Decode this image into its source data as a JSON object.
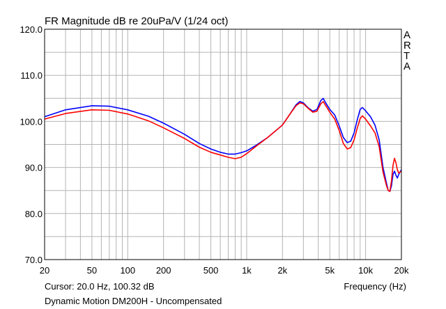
{
  "chart_data": {
    "type": "line",
    "title": "FR Magnitude dB re 20uPa/V (1/24 oct)",
    "xlabel": "Frequency (Hz)",
    "ylabel": "",
    "x_scale": "log",
    "xlim": [
      20,
      20000
    ],
    "ylim": [
      70,
      120
    ],
    "grid": true,
    "y_ticks": [
      "120.0",
      "110.0",
      "100.0",
      "90.0",
      "80.0",
      "70.0"
    ],
    "x_ticks": [
      {
        "value": 20,
        "label": "20"
      },
      {
        "value": 50,
        "label": "50"
      },
      {
        "value": 100,
        "label": "100"
      },
      {
        "value": 200,
        "label": "200"
      },
      {
        "value": 500,
        "label": "500"
      },
      {
        "value": 1000,
        "label": "1k"
      },
      {
        "value": 2000,
        "label": "2k"
      },
      {
        "value": 5000,
        "label": "5k"
      },
      {
        "value": 10000,
        "label": "10k"
      },
      {
        "value": 20000,
        "label": "20k"
      }
    ],
    "series": [
      {
        "color": "#0000ff",
        "points": [
          [
            20,
            101
          ],
          [
            30,
            102.5
          ],
          [
            50,
            103.4
          ],
          [
            70,
            103.3
          ],
          [
            100,
            102.5
          ],
          [
            150,
            101.1
          ],
          [
            200,
            99.6
          ],
          [
            300,
            97.2
          ],
          [
            400,
            95.2
          ],
          [
            500,
            94
          ],
          [
            600,
            93.3
          ],
          [
            700,
            92.9
          ],
          [
            800,
            92.9
          ],
          [
            900,
            93.2
          ],
          [
            1000,
            93.6
          ],
          [
            1200,
            94.8
          ],
          [
            1500,
            96.5
          ],
          [
            2000,
            99.2
          ],
          [
            2300,
            101.5
          ],
          [
            2600,
            103.6
          ],
          [
            2800,
            104.3
          ],
          [
            3000,
            104
          ],
          [
            3300,
            102.9
          ],
          [
            3600,
            102.2
          ],
          [
            3900,
            102.6
          ],
          [
            4200,
            104.5
          ],
          [
            4400,
            105
          ],
          [
            4600,
            104.1
          ],
          [
            5000,
            102.6
          ],
          [
            5500,
            101.4
          ],
          [
            6000,
            99
          ],
          [
            6500,
            96.5
          ],
          [
            7000,
            95.4
          ],
          [
            7500,
            95.7
          ],
          [
            8000,
            97.5
          ],
          [
            8500,
            100.3
          ],
          [
            9000,
            102.6
          ],
          [
            9400,
            103
          ],
          [
            10000,
            102.3
          ],
          [
            11000,
            101
          ],
          [
            12000,
            99.2
          ],
          [
            13000,
            96
          ],
          [
            14000,
            90
          ],
          [
            15000,
            86.5
          ],
          [
            15500,
            85
          ],
          [
            16000,
            84.8
          ],
          [
            16500,
            86
          ],
          [
            17000,
            88.5
          ],
          [
            17500,
            89.2
          ],
          [
            18000,
            88.3
          ],
          [
            18500,
            87.7
          ],
          [
            19000,
            88.5
          ],
          [
            20000,
            89.5
          ]
        ]
      },
      {
        "color": "#ff0000",
        "points": [
          [
            20,
            100.5
          ],
          [
            30,
            101.7
          ],
          [
            50,
            102.5
          ],
          [
            70,
            102.4
          ],
          [
            100,
            101.6
          ],
          [
            150,
            100.1
          ],
          [
            200,
            98.6
          ],
          [
            300,
            96.3
          ],
          [
            400,
            94.4
          ],
          [
            500,
            93.3
          ],
          [
            600,
            92.7
          ],
          [
            700,
            92.2
          ],
          [
            800,
            91.9
          ],
          [
            900,
            92.2
          ],
          [
            1000,
            93
          ],
          [
            1200,
            94.6
          ],
          [
            1500,
            96.5
          ],
          [
            2000,
            99.2
          ],
          [
            2300,
            101.5
          ],
          [
            2600,
            103.4
          ],
          [
            2800,
            104
          ],
          [
            3000,
            103.8
          ],
          [
            3300,
            102.8
          ],
          [
            3600,
            102
          ],
          [
            3900,
            102.2
          ],
          [
            4200,
            103.8
          ],
          [
            4400,
            104.3
          ],
          [
            4600,
            103.5
          ],
          [
            5000,
            102
          ],
          [
            5500,
            100.5
          ],
          [
            6000,
            98
          ],
          [
            6500,
            95.2
          ],
          [
            7000,
            94
          ],
          [
            7500,
            94.3
          ],
          [
            8000,
            96
          ],
          [
            8500,
            98.5
          ],
          [
            9000,
            100.6
          ],
          [
            9400,
            101.2
          ],
          [
            10000,
            100.5
          ],
          [
            11000,
            99
          ],
          [
            12000,
            97.5
          ],
          [
            13000,
            94.5
          ],
          [
            14000,
            89
          ],
          [
            15000,
            86
          ],
          [
            15500,
            85
          ],
          [
            16000,
            84.8
          ],
          [
            16500,
            87
          ],
          [
            17000,
            90.5
          ],
          [
            17500,
            92
          ],
          [
            18000,
            91
          ],
          [
            18500,
            89.5
          ],
          [
            19000,
            88.8
          ],
          [
            20000,
            89.2
          ]
        ]
      }
    ]
  },
  "cursor_readout": "Cursor: 20.0 Hz, 100.32 dB",
  "caption": "Dynamic Motion DM200H - Uncompensated",
  "side_label_letters": [
    "A",
    "R",
    "T",
    "A"
  ]
}
